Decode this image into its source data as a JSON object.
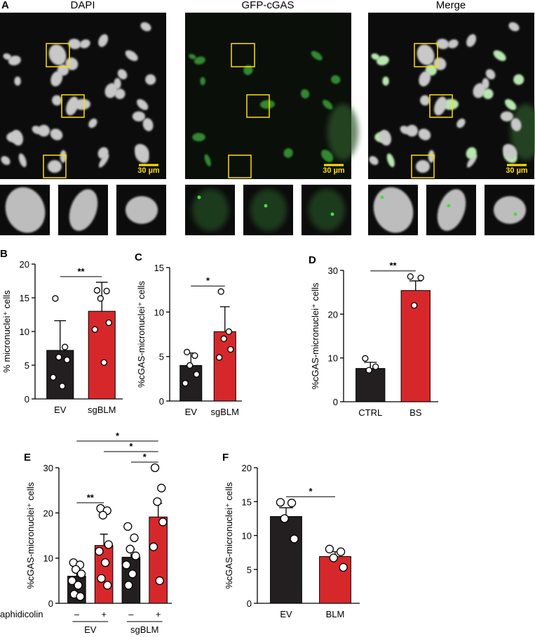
{
  "panel_a": {
    "label": "A",
    "channels": [
      "DAPI",
      "GFP-cGAS",
      "Merge"
    ],
    "scale_bar": "30 µm"
  },
  "chart_data": [
    {
      "type": "bar",
      "label": "B",
      "ylabel": "% micronuclei⁺ cells",
      "categories": [
        "EV",
        "sgBLM"
      ],
      "colors": [
        "#231f20",
        "#d6282b"
      ],
      "values": [
        7.2,
        13.0
      ],
      "errors": [
        4.4,
        4.3
      ],
      "points": [
        [
          14.9,
          7.7,
          6.2,
          5.8,
          3.2,
          1.9
        ],
        [
          16.1,
          16.0,
          14.9,
          11.3,
          10.3,
          5.4
        ]
      ],
      "ylim": [
        0,
        20
      ],
      "yticks": [
        0,
        5,
        10,
        15,
        20
      ],
      "significance": [
        {
          "label": "**",
          "pair": [
            0,
            1
          ]
        }
      ]
    },
    {
      "type": "bar",
      "label": "C",
      "ylabel": "%cGAS-micronuclei⁺ cells",
      "categories": [
        "EV",
        "sgBLM"
      ],
      "colors": [
        "#231f20",
        "#d6282b"
      ],
      "values": [
        4.0,
        7.8
      ],
      "errors": [
        1.4,
        2.8
      ],
      "points": [
        [
          5.5,
          5.1,
          4.0,
          3.0,
          2.0
        ],
        [
          12.3,
          7.8,
          7.0,
          5.8,
          4.9
        ]
      ],
      "ylim": [
        0,
        15
      ],
      "yticks": [
        0,
        5,
        10,
        15
      ],
      "significance": [
        {
          "label": "*",
          "pair": [
            0,
            1
          ]
        }
      ]
    },
    {
      "type": "bar",
      "label": "D",
      "ylabel": "%cGAS-micronuclei⁺ cells",
      "categories": [
        "CTRL",
        "BS"
      ],
      "colors": [
        "#231f20",
        "#d6282b"
      ],
      "values": [
        7.6,
        25.4
      ],
      "errors": [
        1.4,
        2.2
      ],
      "points": [
        [
          9.9,
          8.0,
          7.2
        ],
        [
          28.6,
          28.3,
          22.0
        ]
      ],
      "ylim": [
        0,
        30
      ],
      "yticks": [
        0,
        10,
        20,
        30
      ],
      "significance": [
        {
          "label": "**",
          "pair": [
            0,
            1
          ]
        }
      ]
    },
    {
      "type": "bar",
      "label": "E",
      "ylabel": "%cGAS-micronuclei⁺ cells",
      "categories": [
        "–",
        "+",
        "–",
        "+"
      ],
      "row_label": "aphidicolin",
      "groups": [
        {
          "label": "EV",
          "members": [
            0,
            1
          ]
        },
        {
          "label": "sgBLM",
          "members": [
            2,
            3
          ]
        }
      ],
      "colors": [
        "#231f20",
        "#d6282b",
        "#231f20",
        "#d6282b"
      ],
      "values": [
        6.0,
        12.8,
        10.2,
        19.1
      ],
      "errors": [
        1.8,
        2.5,
        1.8,
        3.0
      ],
      "points": [
        [
          9.0,
          8.5,
          7.5,
          6.5,
          5.0,
          4.0,
          2.0,
          1.5
        ],
        [
          21.0,
          20.5,
          19.5,
          13.0,
          11.5,
          9.0,
          5.5,
          4.0
        ],
        [
          17.0,
          14.5,
          12.0,
          10.5,
          8.5,
          6.5,
          4.0
        ],
        [
          30.0,
          25.5,
          22.5,
          18.0,
          12.5,
          5.0
        ]
      ],
      "ylim": [
        0,
        30
      ],
      "yticks": [
        0,
        10,
        20,
        30
      ],
      "significance": [
        {
          "label": "**",
          "pair": [
            0,
            1
          ]
        },
        {
          "label": "*",
          "pair": [
            2,
            3
          ]
        },
        {
          "label": "*",
          "pair": [
            1,
            3
          ]
        },
        {
          "label": "*",
          "pair": [
            0,
            3
          ]
        }
      ]
    },
    {
      "type": "bar",
      "label": "F",
      "ylabel": "%cGAS-micronuclei⁺ cells",
      "categories": [
        "EV",
        "BLM"
      ],
      "colors": [
        "#231f20",
        "#d6282b"
      ],
      "values": [
        12.8,
        6.9
      ],
      "errors": [
        1.3,
        0.7
      ],
      "points": [
        [
          14.9,
          14.8,
          12.5,
          9.5
        ],
        [
          8.0,
          7.6,
          6.7,
          5.3
        ]
      ],
      "ylim": [
        0,
        20
      ],
      "yticks": [
        0,
        5,
        10,
        15,
        20
      ],
      "significance": [
        {
          "label": "*",
          "pair": [
            0,
            1
          ]
        }
      ]
    }
  ]
}
